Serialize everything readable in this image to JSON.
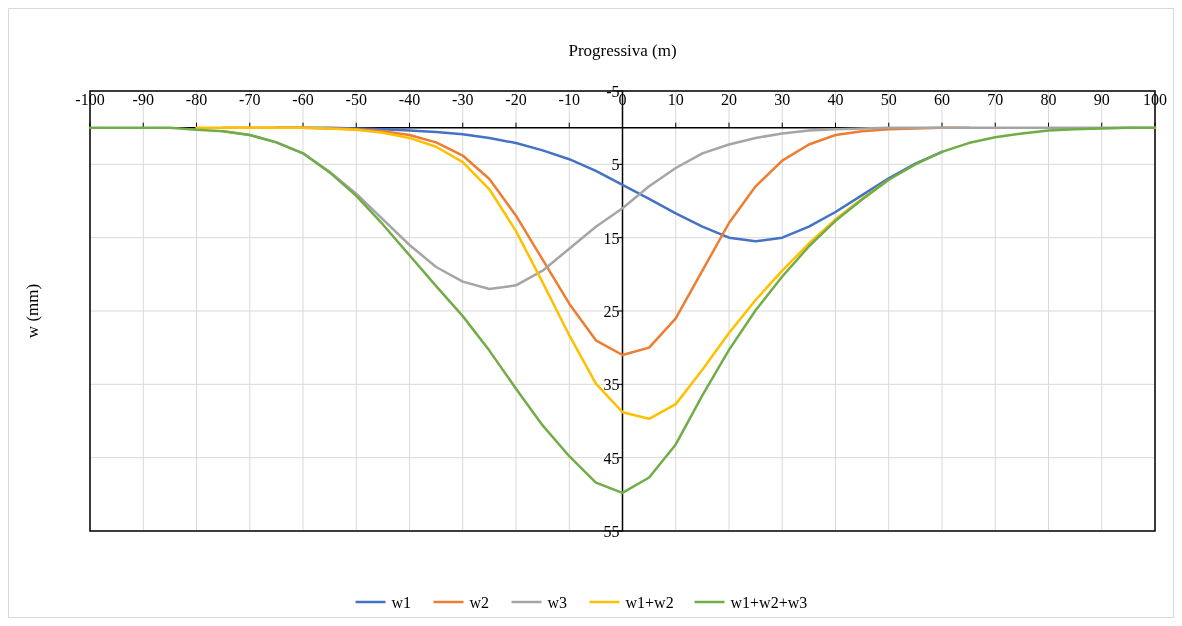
{
  "chart_data": {
    "type": "line",
    "xlabel": "Progressiva (m)",
    "ylabel": "w (mm)",
    "x": [
      -100,
      -95,
      -90,
      -85,
      -80,
      -75,
      -70,
      -65,
      -60,
      -55,
      -50,
      -45,
      -40,
      -35,
      -30,
      -25,
      -20,
      -15,
      -10,
      -5,
      0,
      5,
      10,
      15,
      20,
      25,
      30,
      35,
      40,
      45,
      50,
      55,
      60,
      65,
      70,
      75,
      80,
      85,
      90,
      95,
      100
    ],
    "series": [
      {
        "name": "w1",
        "color": "#4472c4",
        "values": [
          null,
          null,
          null,
          null,
          null,
          null,
          null,
          0,
          0,
          0,
          0.1,
          0.2,
          0.4,
          0.6,
          0.9,
          1.4,
          2.1,
          3.1,
          4.3,
          5.9,
          7.8,
          9.7,
          11.7,
          13.5,
          15,
          15.5,
          15,
          13.5,
          11.5,
          9.2,
          6.9,
          4.9,
          3.3,
          null,
          null,
          null,
          null,
          null,
          null,
          null,
          null
        ]
      },
      {
        "name": "w2",
        "color": "#ed7d31",
        "values": [
          null,
          null,
          null,
          null,
          null,
          0,
          0,
          0,
          0,
          0.1,
          0.2,
          0.5,
          1,
          2,
          3.8,
          7,
          12,
          18,
          24,
          29,
          31,
          30,
          26,
          19.5,
          13,
          8,
          4.5,
          2.3,
          1,
          0.5,
          0.2,
          0.1,
          0,
          0,
          null,
          null,
          null,
          null,
          null,
          null,
          null
        ]
      },
      {
        "name": "w3",
        "color": "#a5a5a5",
        "values": [
          null,
          null,
          null,
          null,
          null,
          0.5,
          1,
          2,
          3.5,
          6,
          9,
          12.5,
          16,
          19,
          21,
          22,
          21.5,
          19.5,
          16.5,
          13.5,
          11,
          8,
          5.5,
          3.5,
          2.3,
          1.4,
          0.8,
          0.4,
          0.2,
          0.1,
          0,
          0,
          0,
          0,
          0,
          0,
          0,
          0,
          0,
          0,
          0
        ]
      },
      {
        "name": "w1+w2",
        "color": "#ffc000",
        "values": [
          null,
          null,
          null,
          null,
          0,
          0,
          0,
          0,
          0,
          0.1,
          0.3,
          0.7,
          1.4,
          2.6,
          4.7,
          8.4,
          14.1,
          21.1,
          28.3,
          34.9,
          38.8,
          39.7,
          37.7,
          33,
          28,
          23.5,
          19.5,
          15.8,
          12.5,
          9.7,
          7.1,
          null,
          null,
          null,
          null,
          null,
          null,
          null,
          null,
          null,
          null
        ]
      },
      {
        "name": "w1+w2+w3",
        "color": "#70ad47",
        "values": [
          0,
          0,
          0,
          0,
          0.3,
          0.5,
          1,
          2,
          3.5,
          6.1,
          9.3,
          13.2,
          17.4,
          21.6,
          25.7,
          30.4,
          35.6,
          40.6,
          44.8,
          48.4,
          49.8,
          47.7,
          43.2,
          36.5,
          30.3,
          24.9,
          20.3,
          16.2,
          12.7,
          9.8,
          7.1,
          5,
          3.3,
          2.1,
          1.3,
          0.8,
          0.4,
          0.2,
          0.1,
          0,
          0
        ]
      }
    ],
    "xlim": [
      -100,
      100
    ],
    "xticks": [
      -100,
      -90,
      -80,
      -70,
      -60,
      -50,
      -40,
      -30,
      -20,
      -10,
      0,
      10,
      20,
      30,
      40,
      50,
      60,
      70,
      80,
      90,
      100
    ],
    "ylim": [
      55,
      -5
    ],
    "yticks": [
      -5,
      5,
      15,
      25,
      35,
      45,
      55
    ],
    "grid": true,
    "legend": "bottom",
    "marker": "none",
    "line_style": "solid"
  }
}
